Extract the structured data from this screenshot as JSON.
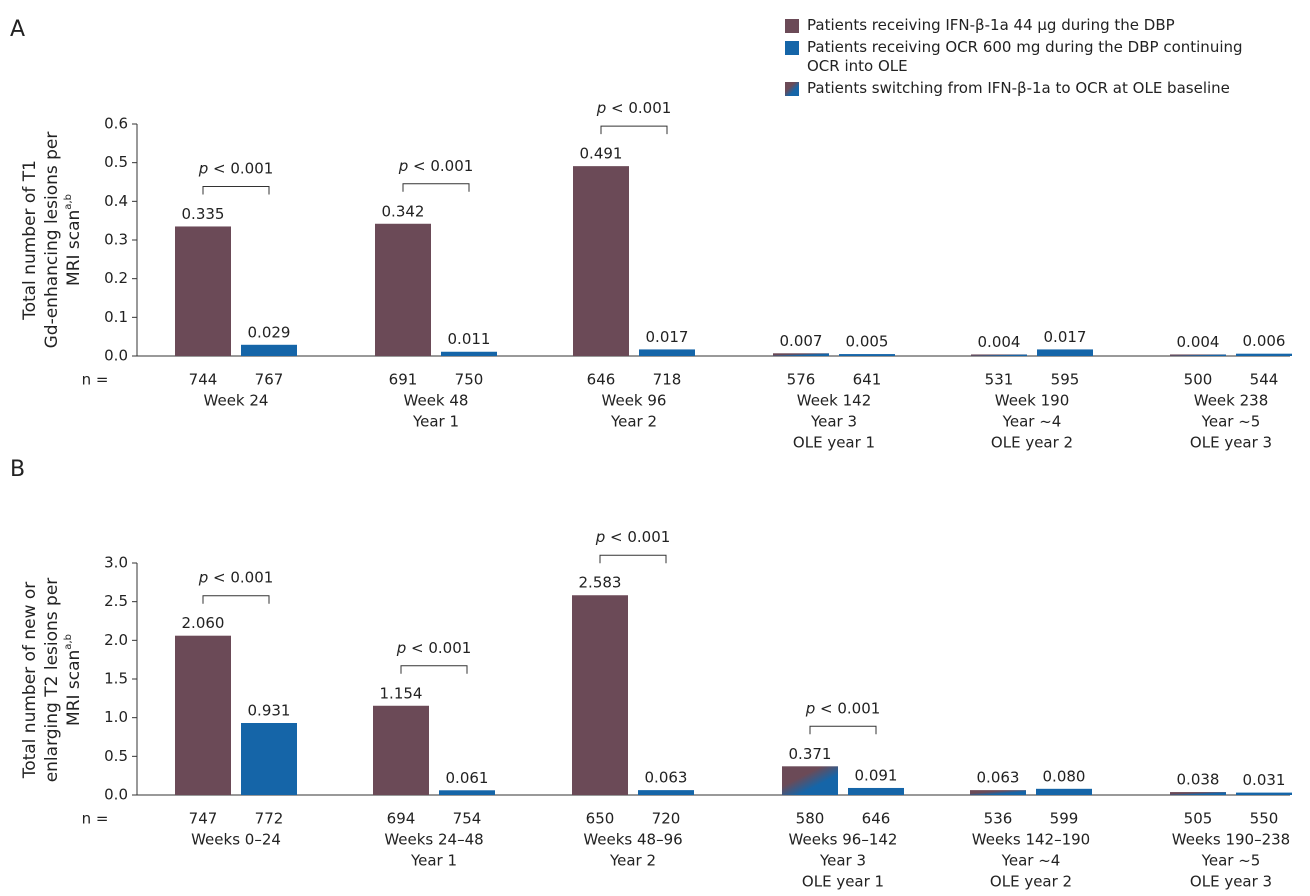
{
  "chart_data": [
    {
      "type": "bar",
      "panel": "A",
      "y_label": [
        "Total number of T1",
        "Gd-enhancing lesions per",
        "MRI scan"
      ],
      "y_label_sup": "a,b",
      "categories": [
        [
          "Week 24"
        ],
        [
          "Week 48",
          "Year 1"
        ],
        [
          "Week 96",
          "Year 2"
        ],
        [
          "Week 142",
          "Year 3",
          "OLE year 1"
        ],
        [
          "Week 190",
          "Year ~4",
          "OLE year 2"
        ],
        [
          "Week 238",
          "Year ~5",
          "OLE year 3"
        ]
      ],
      "n_label": "n =",
      "n": [
        [
          744,
          767
        ],
        [
          691,
          750
        ],
        [
          646,
          718
        ],
        [
          576,
          641
        ],
        [
          531,
          595
        ],
        [
          500,
          544
        ]
      ],
      "p_values": [
        "p < 0.001",
        "p < 0.001",
        "p < 0.001",
        null,
        null,
        null
      ],
      "series": [
        {
          "name": "Patients receiving IFN-β-1a 44 µg during the DBP",
          "color": "#6b4a57",
          "values": [
            0.335,
            0.342,
            0.491,
            null,
            null,
            null
          ]
        },
        {
          "name": "Patients receiving OCR 600 mg during the DBP continuing OCR into OLE",
          "color": "#1565a8",
          "values": [
            0.029,
            0.011,
            0.017,
            0.005,
            0.017,
            0.006
          ]
        },
        {
          "name": "Patients switching from IFN-β-1a to OCR at OLE baseline",
          "color": [
            "#6b4a57",
            "#1565a8"
          ],
          "values": [
            null,
            null,
            null,
            0.007,
            0.004,
            0.004
          ]
        }
      ],
      "ylim": [
        0,
        0.6
      ],
      "yticks": [
        {
          "value": 0,
          "label": "0.0"
        },
        0.1,
        0.2,
        0.3,
        0.4,
        0.5,
        0.6
      ]
    },
    {
      "type": "bar",
      "panel": "B",
      "y_label": [
        "Total number of new or",
        "enlarging T2 lesions per",
        "MRI scan"
      ],
      "y_label_sup": "a,b",
      "categories": [
        [
          "Weeks 0–24"
        ],
        [
          "Weeks 24–48",
          "Year 1"
        ],
        [
          "Weeks 48–96",
          "Year 2"
        ],
        [
          "Weeks 96–142",
          "Year 3",
          "OLE year 1"
        ],
        [
          "Weeks 142–190",
          "Year ~4",
          "OLE year 2"
        ],
        [
          "Weeks 190–238",
          "Year ~5",
          "OLE year 3"
        ]
      ],
      "n_label": "n =",
      "n": [
        [
          747,
          772
        ],
        [
          694,
          754
        ],
        [
          650,
          720
        ],
        [
          580,
          646
        ],
        [
          536,
          599
        ],
        [
          505,
          550
        ]
      ],
      "p_values": [
        "p < 0.001",
        "p < 0.001",
        "p < 0.001",
        "p < 0.001",
        null,
        null
      ],
      "series": [
        {
          "name": "Patients receiving IFN-β-1a 44 µg during the DBP",
          "color": "#6b4a57",
          "values": [
            2.06,
            1.154,
            2.583,
            null,
            null,
            null
          ],
          "value_labels": [
            "2.060",
            "1.154",
            "2.583",
            null,
            null,
            null
          ]
        },
        {
          "name": "Patients receiving OCR 600 mg during the DBP continuing OCR into OLE",
          "color": "#1565a8",
          "values": [
            0.931,
            0.061,
            0.063,
            0.091,
            0.08,
            0.031
          ],
          "value_labels": [
            "0.931",
            "0.061",
            "0.063",
            "0.091",
            "0.080",
            "0.031"
          ]
        },
        {
          "name": "Patients switching from IFN-β-1a to OCR at OLE baseline",
          "color": [
            "#6b4a57",
            "#1565a8"
          ],
          "values": [
            null,
            null,
            null,
            0.371,
            0.063,
            0.038
          ],
          "value_labels": [
            null,
            null,
            null,
            "0.371",
            "0.063",
            "0.038"
          ]
        }
      ],
      "ylim": [
        0,
        3
      ],
      "yticks": [
        {
          "value": 0,
          "label": "0.0"
        },
        0.5,
        {
          "value": 1,
          "label": "1.0"
        },
        1.5,
        {
          "value": 2,
          "label": "2.0"
        },
        2.5,
        {
          "value": 3,
          "label": "3.0"
        }
      ]
    }
  ]
}
